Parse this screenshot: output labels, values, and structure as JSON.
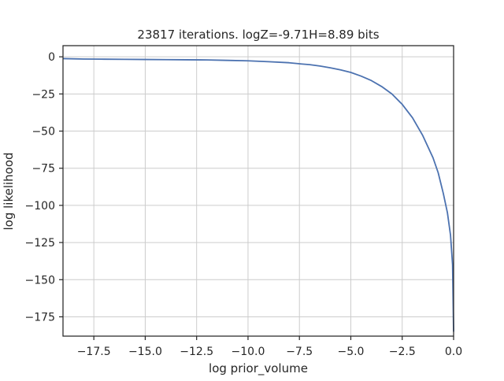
{
  "chart_data": {
    "type": "line",
    "title": "23817 iterations. logZ=-9.71H=8.89 bits",
    "xlabel": "log prior_volume",
    "ylabel": "log likelihood",
    "xlim": [
      -19.0,
      0.0
    ],
    "ylim": [
      -188.0,
      7.5
    ],
    "grid": true,
    "legend": "none",
    "x_ticks": [
      -17.5,
      -15.0,
      -12.5,
      -10.0,
      -7.5,
      -5.0,
      -2.5,
      0.0
    ],
    "x_tick_labels": [
      "−17.5",
      "−15.0",
      "−12.5",
      "−10.0",
      "−7.5",
      "−5.0",
      "−2.5",
      "0.0"
    ],
    "y_ticks": [
      0,
      -25,
      -50,
      -75,
      -100,
      -125,
      -150,
      -175
    ],
    "y_tick_labels": [
      "0",
      "−25",
      "−50",
      "−75",
      "−100",
      "−125",
      "−150",
      "−175"
    ],
    "series": [
      {
        "color": "#4c72b0",
        "x": [
          -19.0,
          -18.0,
          -17.0,
          -16.0,
          -15.0,
          -14.0,
          -13.0,
          -12.0,
          -11.0,
          -10.0,
          -9.0,
          -8.0,
          -7.5,
          -7.0,
          -6.5,
          -6.0,
          -5.5,
          -5.0,
          -4.5,
          -4.0,
          -3.5,
          -3.0,
          -2.5,
          -2.0,
          -1.5,
          -1.0,
          -0.75,
          -0.5,
          -0.3,
          -0.15,
          -0.05,
          0.0
        ],
        "y": [
          -1.2,
          -1.5,
          -1.6,
          -1.7,
          -1.8,
          -1.9,
          -2.0,
          -2.1,
          -2.4,
          -2.7,
          -3.3,
          -4.0,
          -4.7,
          -5.3,
          -6.2,
          -7.4,
          -8.8,
          -10.5,
          -13.0,
          -16.0,
          -20.0,
          -25.0,
          -32.0,
          -41.0,
          -53.0,
          -68.0,
          -78.0,
          -92.0,
          -105.0,
          -120.0,
          -140.0,
          -185.0
        ]
      }
    ]
  }
}
